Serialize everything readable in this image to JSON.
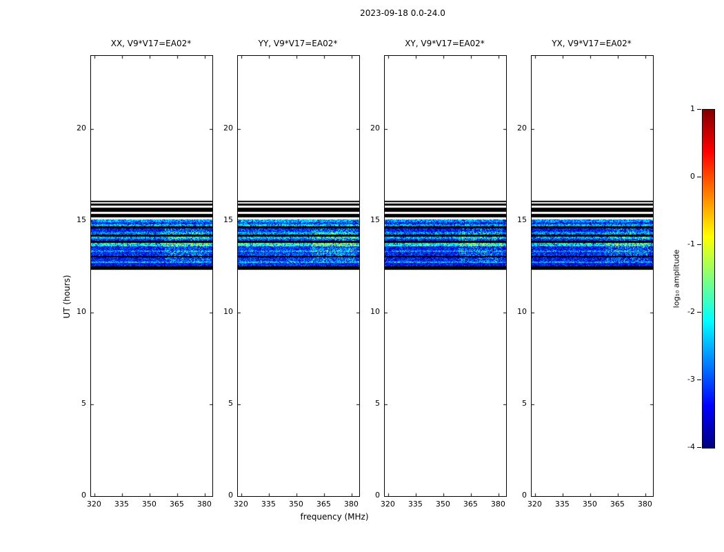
{
  "chart_data": {
    "type": "heatmap",
    "title": "2023-09-18 0.0-24.0",
    "xlabel": "frequency (MHz)",
    "ylabel": "UT (hours)",
    "x_range": [
      318,
      384
    ],
    "x_ticks": [
      320,
      335,
      350,
      365,
      380
    ],
    "y_range": [
      0,
      24
    ],
    "y_ticks": [
      0,
      5,
      10,
      15,
      20
    ],
    "panels": [
      {
        "label": "XX, V9*V17=EA02*",
        "level_offset": 0.0
      },
      {
        "label": "YY, V9*V17=EA02*",
        "level_offset": 0.15
      },
      {
        "label": "XY, V9*V17=EA02*",
        "level_offset": -0.05
      },
      {
        "label": "YX, V9*V17=EA02*",
        "level_offset": -0.05
      }
    ],
    "colorbar": {
      "label": "log₁₀ amplitude",
      "range": [
        -4,
        1
      ],
      "ticks": [
        1,
        0,
        -1,
        -2,
        -3,
        -4
      ],
      "colors_bottom_to_top": [
        "#000080",
        "#0000ff",
        "#0080ff",
        "#00ffff",
        "#7fff7f",
        "#ffff00",
        "#ff8000",
        "#ff0000",
        "#800000"
      ]
    },
    "observation_window_ut": [
      12.34,
      16.1
    ],
    "stripes": [
      {
        "ut": [
          12.34,
          12.53
        ],
        "t": "black"
      },
      {
        "ut": [
          12.53,
          12.7
        ],
        "t": "noise",
        "v": -3.3
      },
      {
        "ut": [
          12.7,
          12.8
        ],
        "t": "noise",
        "v": -2.4
      },
      {
        "ut": [
          12.8,
          13.0
        ],
        "t": "noise",
        "v": -3.2
      },
      {
        "ut": [
          13.0,
          13.09
        ],
        "t": "black"
      },
      {
        "ut": [
          13.09,
          13.3
        ],
        "t": "noise",
        "v": -3.1
      },
      {
        "ut": [
          13.3,
          13.4
        ],
        "t": "noise",
        "v": -2.5
      },
      {
        "ut": [
          13.4,
          13.6
        ],
        "t": "noise",
        "v": -3.2
      },
      {
        "ut": [
          13.6,
          13.8
        ],
        "t": "noise",
        "v": -2.0
      },
      {
        "ut": [
          13.8,
          13.92
        ],
        "t": "black"
      },
      {
        "ut": [
          13.92,
          14.05
        ],
        "t": "noise",
        "v": -3.1
      },
      {
        "ut": [
          14.05,
          14.15
        ],
        "t": "noise",
        "v": -2.4
      },
      {
        "ut": [
          14.15,
          14.26
        ],
        "t": "black"
      },
      {
        "ut": [
          14.26,
          14.42
        ],
        "t": "noise",
        "v": -2.6
      },
      {
        "ut": [
          14.42,
          14.6
        ],
        "t": "noise",
        "v": -3.2
      },
      {
        "ut": [
          14.6,
          14.71
        ],
        "t": "black"
      },
      {
        "ut": [
          14.71,
          14.83
        ],
        "t": "noise",
        "v": -2.4
      },
      {
        "ut": [
          14.83,
          14.95
        ],
        "t": "noise",
        "v": -3.1
      },
      {
        "ut": [
          14.95,
          15.09
        ],
        "t": "noise",
        "v": -2.5
      },
      {
        "ut": [
          15.09,
          15.2
        ],
        "t": "white"
      },
      {
        "ut": [
          15.2,
          15.38
        ],
        "t": "black"
      },
      {
        "ut": [
          15.38,
          15.5
        ],
        "t": "white"
      },
      {
        "ut": [
          15.5,
          15.73
        ],
        "t": "black"
      },
      {
        "ut": [
          15.73,
          15.84
        ],
        "t": "white"
      },
      {
        "ut": [
          15.84,
          15.95
        ],
        "t": "black"
      },
      {
        "ut": [
          15.95,
          16.01
        ],
        "t": "white"
      },
      {
        "ut": [
          16.01,
          16.1
        ],
        "t": "black"
      }
    ],
    "hot_patch": {
      "x_mhz": [
        358,
        382
      ],
      "ut": [
        12.8,
        14.6
      ],
      "boost": 0.9
    },
    "noise": {
      "jitter": 1.3,
      "dark_fraction": 0.15,
      "dark_drop": 1.8
    }
  }
}
